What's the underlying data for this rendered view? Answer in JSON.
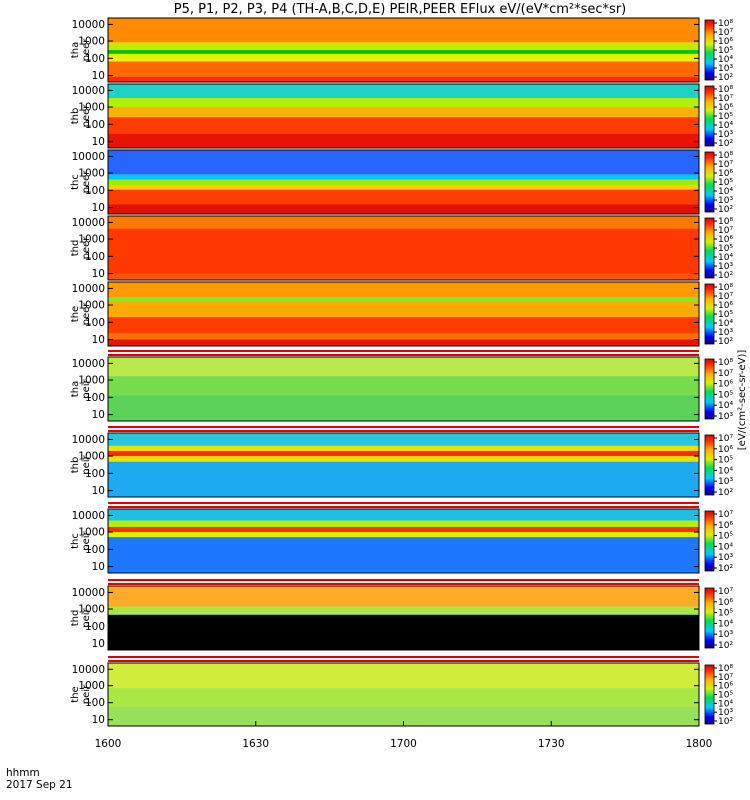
{
  "chart_data": {
    "type": "heatmap",
    "title": "P5, P1, P2, P3, P4 (TH-A,B,C,D,E) PEIR,PEER EFlux eV/(eV*cm²*sec*sr)",
    "x_label": "hhmm",
    "date": "2017 Sep 21",
    "x_ticks": [
      "1600",
      "1630",
      "1700",
      "1730",
      "1800"
    ],
    "x_range": [
      1600,
      1800
    ],
    "colorbar_label": "[eV/(cm²-sec-sr-eV)]",
    "panels": [
      {
        "probe": "tha",
        "instrument": "peer",
        "y_ticks": [
          "10",
          "100",
          "1000",
          "10000"
        ],
        "cbar_ticks": [
          "10²",
          "10³",
          "10⁴",
          "10⁵",
          "10⁶",
          "10⁷",
          "10⁸"
        ]
      },
      {
        "probe": "thb",
        "instrument": "peer",
        "y_ticks": [
          "10",
          "100",
          "1000",
          "10000"
        ],
        "cbar_ticks": [
          "10²",
          "10³",
          "10⁴",
          "10⁵",
          "10⁶",
          "10⁷",
          "10⁸"
        ]
      },
      {
        "probe": "thc",
        "instrument": "peer",
        "y_ticks": [
          "10",
          "100",
          "1000",
          "10000"
        ],
        "cbar_ticks": [
          "10²",
          "10³",
          "10⁴",
          "10⁵",
          "10⁶",
          "10⁷",
          "10⁸"
        ]
      },
      {
        "probe": "thd",
        "instrument": "peer",
        "y_ticks": [
          "10",
          "100",
          "1000",
          "10000"
        ],
        "cbar_ticks": [
          "10²",
          "10³",
          "10⁴",
          "10⁵",
          "10⁶",
          "10⁷",
          "10⁸"
        ]
      },
      {
        "probe": "the",
        "instrument": "peer",
        "y_ticks": [
          "10",
          "100",
          "1000",
          "10000"
        ],
        "cbar_ticks": [
          "10²",
          "10³",
          "10⁴",
          "10⁵",
          "10⁶",
          "10⁷",
          "10⁸"
        ]
      },
      {
        "probe": "tha",
        "instrument": "peir",
        "y_ticks": [
          "10",
          "100",
          "1000",
          "10000"
        ],
        "cbar_ticks": [
          "10³",
          "10⁴",
          "10⁵",
          "10⁶",
          "10⁷",
          "10⁸"
        ]
      },
      {
        "probe": "thb",
        "instrument": "peir",
        "y_ticks": [
          "10",
          "100",
          "1000",
          "10000"
        ],
        "cbar_ticks": [
          "10²",
          "10³",
          "10⁴",
          "10⁵",
          "10⁶",
          "10⁷"
        ]
      },
      {
        "probe": "thc",
        "instrument": "peir",
        "y_ticks": [
          "10",
          "100",
          "1000",
          "10000"
        ],
        "cbar_ticks": [
          "10²",
          "10³",
          "10⁴",
          "10⁵",
          "10⁶",
          "10⁷"
        ]
      },
      {
        "probe": "thd",
        "instrument": "peir",
        "y_ticks": [
          "10",
          "100",
          "1000",
          "10000"
        ],
        "cbar_ticks": [
          "10²",
          "10³",
          "10⁴",
          "10⁵",
          "10⁶",
          "10⁷"
        ]
      },
      {
        "probe": "the",
        "instrument": "peir",
        "y_ticks": [
          "10",
          "100",
          "1000",
          "10000"
        ],
        "cbar_ticks": [
          "10²",
          "10³",
          "10⁴",
          "10⁵",
          "10⁶",
          "10⁷",
          "10⁸"
        ]
      }
    ]
  }
}
